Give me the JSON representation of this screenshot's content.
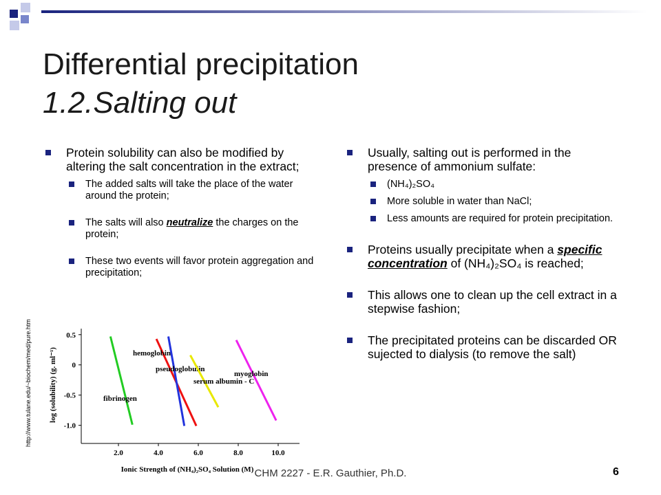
{
  "header": {
    "title": "Differential precipitation",
    "subtitle": "1.2.Salting out"
  },
  "left_column": {
    "items": [
      {
        "text": "Protein solubility can also be modified by altering the salt concentration in the extract;",
        "subitems": [
          {
            "text": "The added salts will take the place of the water around the protein;"
          },
          {
            "before": "The salts will also ",
            "emphasis": "neutralize",
            "after": " the charges on the protein;"
          },
          {
            "text": "These two events will favor protein aggregation and precipitation;"
          }
        ]
      }
    ]
  },
  "right_column": {
    "items": [
      {
        "text": "Usually, salting out is performed in the presence of ammonium sulfate:",
        "subitems": [
          {
            "text": "(NH₄)₂SO₄"
          },
          {
            "text": "More soluble in water than NaCl;"
          },
          {
            "text": "Less amounts are required for protein precipitation."
          }
        ]
      },
      {
        "before": "Proteins usually precipitate when a ",
        "emphasis": "specific concentration",
        "after": " of (NH₄)₂SO₄ is reached;"
      },
      {
        "text": "This allows one to clean up the cell extract in a stepwise fashion;"
      },
      {
        "text": "The precipitated proteins can be discarded OR sujected to dialysis (to remove the salt)"
      }
    ]
  },
  "source_url": "http://www.tulane.edu/~biochem/med/pure.htm",
  "footer": {
    "text": "CHM 2227 - E.R. Gauthier, Ph.D.",
    "page_number": "6"
  },
  "chart_data": {
    "type": "line",
    "x_label": "Ionic Strength of (NH₄)₂SO₄ Solution (M)",
    "y_label": "log (solubility) (g. ml⁻¹)",
    "xlim": [
      0,
      11
    ],
    "ylim": [
      -1.3,
      0.6
    ],
    "xticks": [
      {
        "value": 2,
        "label": "2.0"
      },
      {
        "value": 4,
        "label": "4.0"
      },
      {
        "value": 6,
        "label": "6.0"
      },
      {
        "value": 8,
        "label": "8.0"
      },
      {
        "value": 10,
        "label": "10.0"
      }
    ],
    "yticks": [
      0.5,
      0,
      -0.5,
      {
        "value": -1,
        "label": "-1.0"
      }
    ],
    "series": [
      {
        "name": "fibrinogen",
        "color": "#22cc22",
        "x": [
          1.6,
          2.7
        ],
        "values": [
          0.47,
          -0.99
        ]
      },
      {
        "name": "hemoglobin",
        "color": "#ee1111",
        "x": [
          3.9,
          5.9
        ],
        "values": [
          0.43,
          -1.01
        ]
      },
      {
        "name": "pseudoglobulin",
        "color": "#2233dd",
        "x": [
          4.5,
          5.3
        ],
        "values": [
          0.47,
          -1.01
        ]
      },
      {
        "name": "serum albumin - C",
        "color": "#e8e800",
        "x": [
          5.6,
          7.0
        ],
        "values": [
          0.16,
          -0.7
        ]
      },
      {
        "name": "myoglobin",
        "color": "#ee22ee",
        "x": [
          7.9,
          9.9
        ],
        "values": [
          0.41,
          -0.92
        ]
      }
    ]
  }
}
